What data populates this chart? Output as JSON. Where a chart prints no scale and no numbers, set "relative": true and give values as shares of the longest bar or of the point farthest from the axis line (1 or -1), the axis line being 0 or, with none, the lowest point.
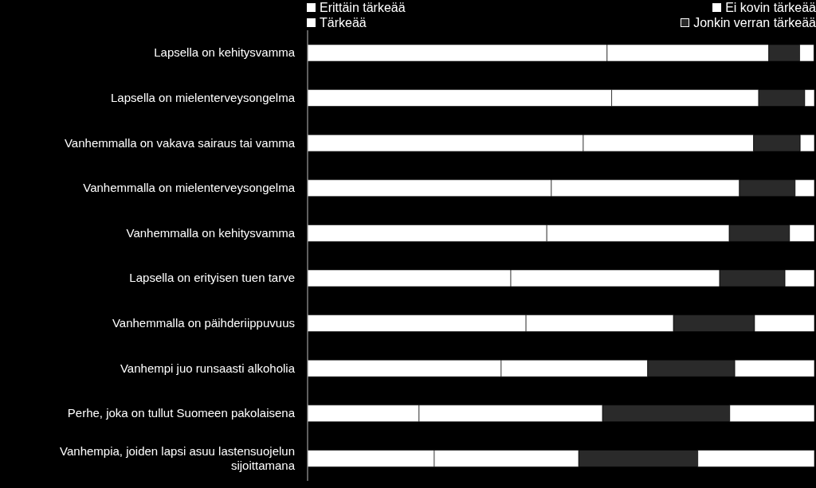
{
  "chart_data": {
    "type": "bar",
    "orientation": "horizontal",
    "stacked": true,
    "relative": true,
    "legend": "top",
    "grid": false,
    "categories": [
      "Lapsella on kehitysvamma",
      "Lapsella on mielenterveysongelma",
      "Vanhemmalla on vakava sairaus tai vamma",
      "Vanhemmalla on mielenterveysongelma",
      "Vanhemmalla on kehitysvamma",
      "Lapsella on erityisen tuen tarve",
      "Vanhemmalla on päihderiippuvuus",
      "Vanhempi juo runsaasti alkoholia",
      "Perhe, joka on tullut Suomeen pakolaisena",
      "Vanhempia, joiden lapsi asuu lastensuojelun sijoittamana"
    ],
    "series": [
      {
        "name": "Erittäin tärkeää",
        "color": "#ffffff",
        "values": [
          0.591,
          0.6,
          0.544,
          0.481,
          0.472,
          0.401,
          0.431,
          0.382,
          0.22,
          0.25
        ]
      },
      {
        "name": "Tärkeää",
        "color": "#ffffff",
        "values": [
          0.319,
          0.29,
          0.336,
          0.371,
          0.36,
          0.412,
          0.291,
          0.289,
          0.362,
          0.285
        ]
      },
      {
        "name": "Jonkin verran tärkeää",
        "color": "#2a2a2a",
        "values": [
          0.061,
          0.091,
          0.092,
          0.11,
          0.119,
          0.129,
          0.16,
          0.172,
          0.251,
          0.235
        ]
      },
      {
        "name": "Ei kovin tärkeää",
        "color": "#ffffff",
        "values": [
          0.028,
          0.019,
          0.028,
          0.038,
          0.049,
          0.058,
          0.118,
          0.157,
          0.167,
          0.23
        ]
      }
    ]
  }
}
